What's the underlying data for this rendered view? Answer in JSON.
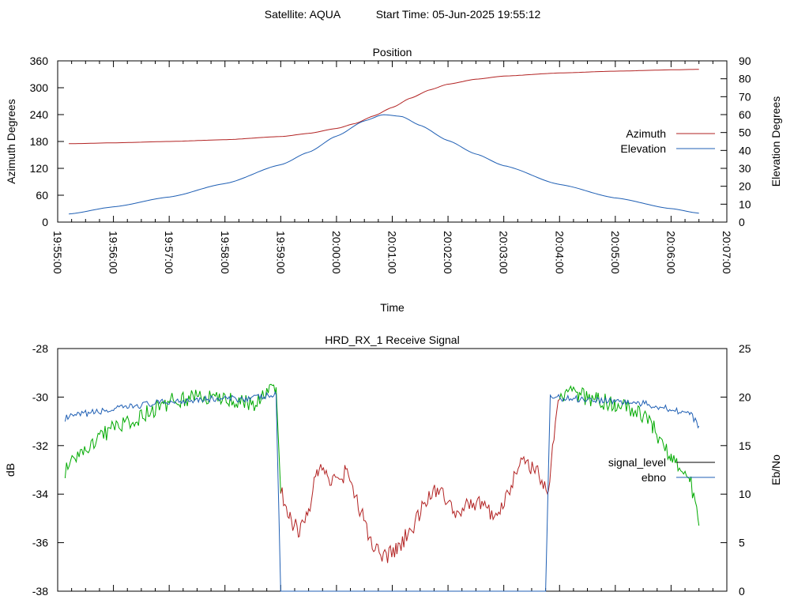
{
  "header": {
    "satellite": "Satellite: AQUA",
    "start_time": "Start Time: 05-Jun-2025 19:55:12"
  },
  "chart_data": [
    {
      "type": "line",
      "title": "Position",
      "xlabel": "Time",
      "ylabel": "Azimuth Degrees",
      "y2label": "Elevation Degrees",
      "ylim": [
        0,
        360
      ],
      "y2lim": [
        0,
        90
      ],
      "xlim": [
        "19:55:00",
        "20:07:00"
      ],
      "yticks": [
        "0",
        "60",
        "120",
        "180",
        "240",
        "300",
        "360"
      ],
      "y2ticks": [
        "0",
        "10",
        "20",
        "30",
        "40",
        "50",
        "60",
        "70",
        "80",
        "90"
      ],
      "xticks": [
        "19:55:00",
        "19:56:00",
        "19:57:00",
        "19:58:00",
        "19:59:00",
        "20:00:00",
        "20:01:00",
        "20:02:00",
        "20:03:00",
        "20:04:00",
        "20:05:00",
        "20:06:00",
        "20:07:00"
      ],
      "legend_position": "right",
      "grid": false,
      "series": [
        {
          "name": "Azimuth",
          "axis": "left",
          "color": "#b22222",
          "x": [
            "19:55:12",
            "19:56:00",
            "19:57:00",
            "19:58:00",
            "19:59:00",
            "19:59:30",
            "20:00:00",
            "20:00:20",
            "20:00:40",
            "20:01:00",
            "20:01:20",
            "20:01:40",
            "20:02:00",
            "20:02:30",
            "20:03:00",
            "20:04:00",
            "20:05:00",
            "20:06:00",
            "20:06:30"
          ],
          "values": [
            175,
            177,
            180,
            184,
            191,
            198,
            209,
            220,
            237,
            256,
            277,
            295,
            308,
            319,
            326,
            333,
            337,
            340,
            341
          ]
        },
        {
          "name": "Elevation",
          "axis": "right",
          "color": "#1f5fb4",
          "x": [
            "19:55:12",
            "19:56:00",
            "19:57:00",
            "19:58:00",
            "19:59:00",
            "19:59:30",
            "20:00:00",
            "20:00:30",
            "20:00:50",
            "20:01:10",
            "20:01:30",
            "20:02:00",
            "20:02:30",
            "20:03:00",
            "20:04:00",
            "20:05:00",
            "20:06:00",
            "20:06:30"
          ],
          "values": [
            4.5,
            8.5,
            14,
            21.5,
            32,
            39,
            48,
            56.5,
            60,
            59,
            54,
            45.5,
            38,
            31.5,
            21,
            13.5,
            7.5,
            5
          ]
        }
      ]
    },
    {
      "type": "line",
      "title": "HRD_RX_1 Receive Signal",
      "ylabel": "dB",
      "y2label": "Eb/No",
      "ylim": [
        -38,
        -28
      ],
      "y2lim": [
        0,
        25
      ],
      "xlim": [
        "19:55:00",
        "20:07:00"
      ],
      "yticks": [
        "-38",
        "-36",
        "-34",
        "-32",
        "-30",
        "-28"
      ],
      "y2ticks": [
        "0",
        "5",
        "10",
        "15",
        "20",
        "25"
      ],
      "legend_position": "right",
      "grid": false,
      "signal_color_after_lock": "#00aa00",
      "series": [
        {
          "name": "signal_level",
          "axis": "left",
          "color": "#b22222",
          "x": [
            "19:55:08",
            "19:55:30",
            "19:56:00",
            "19:56:30",
            "19:57:00",
            "19:57:30",
            "19:58:00",
            "19:58:30",
            "19:58:55",
            "19:59:00",
            "19:59:10",
            "19:59:20",
            "19:59:30",
            "19:59:40",
            "19:59:50",
            "20:00:00",
            "20:00:10",
            "20:00:25",
            "20:00:40",
            "20:00:55",
            "20:01:05",
            "20:01:20",
            "20:01:35",
            "20:01:50",
            "20:02:05",
            "20:02:20",
            "20:02:35",
            "20:02:50",
            "20:03:05",
            "20:03:20",
            "20:03:35",
            "20:03:48",
            "20:04:00",
            "20:04:20",
            "20:04:40",
            "20:05:00",
            "20:05:20",
            "20:05:40",
            "20:06:00",
            "20:06:20",
            "20:06:30"
          ],
          "values": [
            -33.0,
            -32.2,
            -31.2,
            -30.8,
            -30.2,
            -30.0,
            -30.1,
            -30.3,
            -29.6,
            -33.9,
            -35.0,
            -35.6,
            -34.6,
            -33.0,
            -33.3,
            -33.5,
            -33.1,
            -34.6,
            -36.3,
            -36.6,
            -36.2,
            -35.5,
            -34.3,
            -33.8,
            -34.7,
            -34.5,
            -34.3,
            -35.0,
            -33.8,
            -32.6,
            -33.1,
            -33.7,
            -29.9,
            -29.9,
            -30.1,
            -30.3,
            -30.5,
            -31.2,
            -32.5,
            -33.2,
            -35.3
          ]
        },
        {
          "name": "ebno",
          "axis": "right",
          "color": "#1f5fb4",
          "x": [
            "19:55:08",
            "19:55:30",
            "19:56:00",
            "19:56:30",
            "19:57:00",
            "19:57:30",
            "19:58:00",
            "19:58:30",
            "19:58:55",
            "19:59:00",
            "20:03:45",
            "20:03:50",
            "20:04:00",
            "20:04:30",
            "20:05:00",
            "20:05:30",
            "20:06:00",
            "20:06:20",
            "20:06:30"
          ],
          "values": [
            17.8,
            18.3,
            18.7,
            19.2,
            19.5,
            19.8,
            19.8,
            19.9,
            20.2,
            0,
            0,
            20.1,
            19.9,
            19.8,
            19.6,
            19.3,
            18.8,
            18.3,
            17.0
          ]
        }
      ]
    }
  ]
}
